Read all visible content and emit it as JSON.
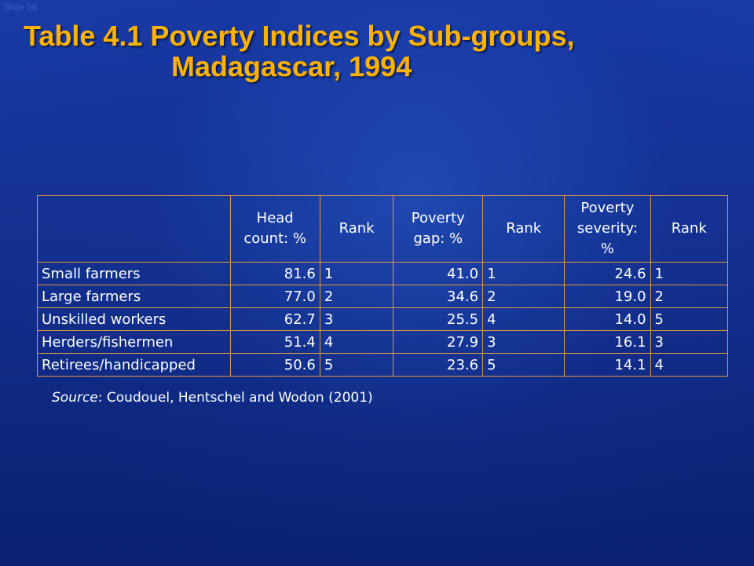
{
  "slide_number": "Slide 56",
  "title": {
    "line1": "Table 4.1 Poverty Indices by Sub-groups,",
    "line2": "Madagascar, 1994"
  },
  "table": {
    "headers": [
      "",
      "Head count: %",
      "Rank",
      "Poverty gap: %",
      "Rank",
      "Poverty severity: %",
      "Rank"
    ],
    "rows": [
      [
        "Small farmers",
        "81.6",
        "1",
        "41.0",
        "1",
        "24.6",
        "1"
      ],
      [
        "Large farmers",
        "77.0",
        "2",
        "34.6",
        "2",
        "19.0",
        "2"
      ],
      [
        "Unskilled workers",
        "62.7",
        "3",
        "25.5",
        "4",
        "14.0",
        "5"
      ],
      [
        "Herders/fishermen",
        "51.4",
        "4",
        "27.9",
        "3",
        "16.1",
        "3"
      ],
      [
        "Retirees/handicapped",
        "50.6",
        "5",
        "23.6",
        "5",
        "14.1",
        "4"
      ]
    ]
  },
  "source": {
    "label": "Source",
    "text": ": Coudouel, Hentschel and Wodon (2001)"
  }
}
